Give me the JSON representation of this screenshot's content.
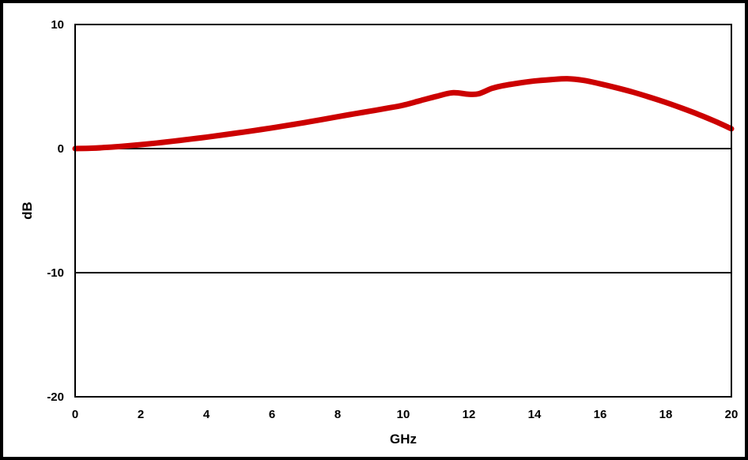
{
  "chart_data": {
    "type": "line",
    "title": "",
    "xlabel": "GHz",
    "ylabel": "dB",
    "xlim": [
      0,
      20
    ],
    "ylim": [
      -20,
      10
    ],
    "xticks": [
      0,
      2,
      4,
      6,
      8,
      10,
      12,
      14,
      16,
      18,
      20
    ],
    "yticks": [
      -20,
      -10,
      0,
      10
    ],
    "grid": "horizontal lines at y ticks",
    "legend": "none",
    "series": [
      {
        "color": "#cc0000",
        "x": [
          0,
          0.5,
          1,
          1.5,
          2,
          2.5,
          3,
          3.5,
          4,
          4.5,
          5,
          5.5,
          6,
          6.5,
          7,
          7.5,
          8,
          8.5,
          9,
          9.5,
          10,
          10.5,
          11,
          11.5,
          12,
          12.3,
          12.7,
          13,
          13.5,
          14,
          14.5,
          15,
          15.5,
          16,
          16.5,
          17,
          17.5,
          18,
          18.5,
          19,
          19.5,
          20
        ],
        "y": [
          0,
          0.03,
          0.1,
          0.2,
          0.32,
          0.45,
          0.6,
          0.76,
          0.92,
          1.1,
          1.28,
          1.47,
          1.67,
          1.88,
          2.1,
          2.33,
          2.57,
          2.8,
          3.02,
          3.25,
          3.5,
          3.85,
          4.2,
          4.5,
          4.38,
          4.42,
          4.85,
          5.05,
          5.27,
          5.45,
          5.56,
          5.63,
          5.5,
          5.22,
          4.9,
          4.55,
          4.15,
          3.72,
          3.25,
          2.75,
          2.2,
          1.6
        ]
      }
    ]
  }
}
